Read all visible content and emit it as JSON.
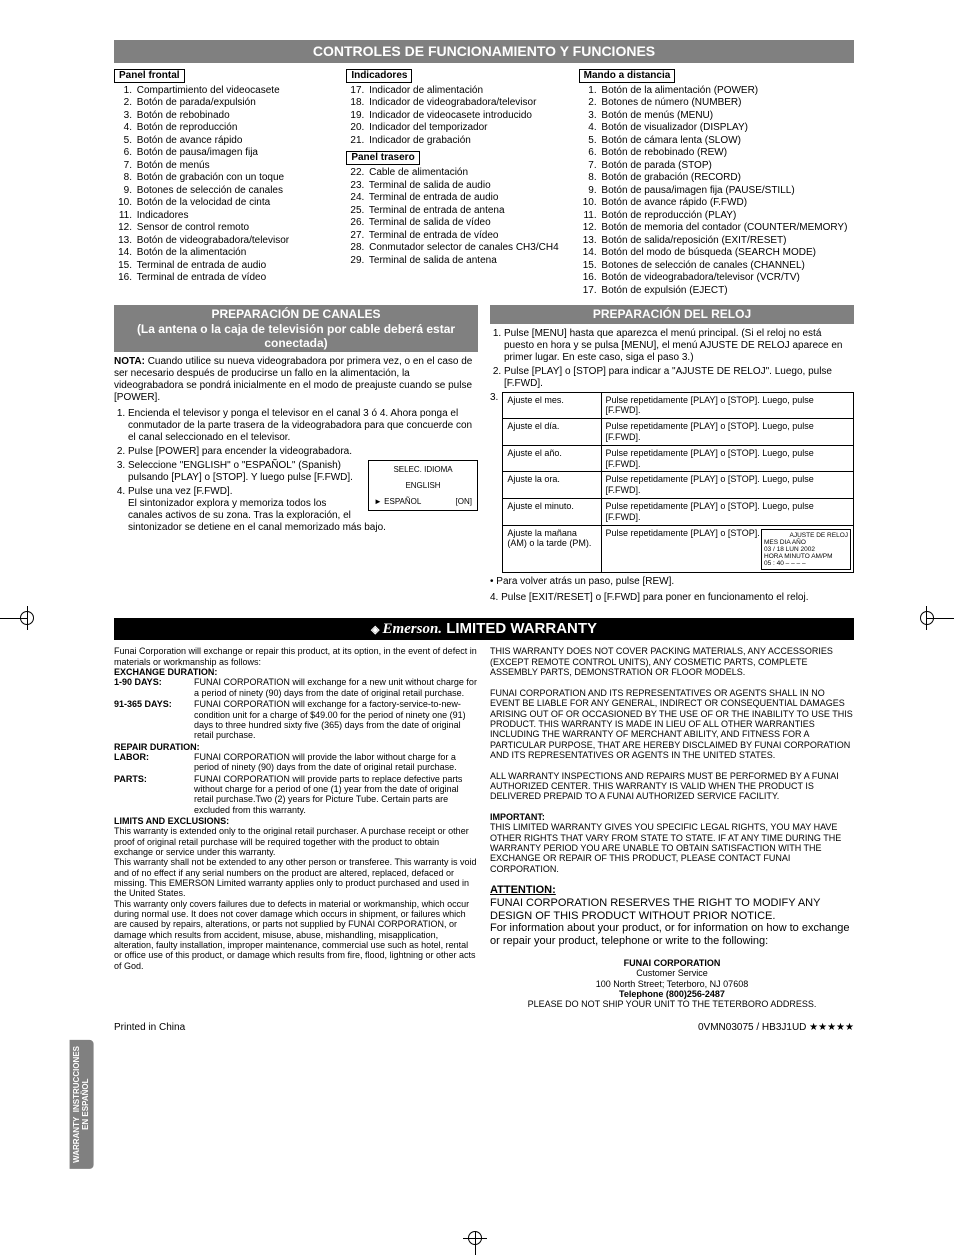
{
  "colors": {
    "banner_bg": "#808080",
    "banner_fg": "#ffffff",
    "black": "#000000"
  },
  "header_banner": "CONTROLES DE FUNCIONAMIENTO Y FUNCIONES",
  "sections": {
    "panel_frontal": {
      "title": "Panel frontal",
      "items": [
        "Compartimiento del videocasete",
        "Botón de parada/expulsión",
        "Botón de rebobinado",
        "Botón de reproducción",
        "Botón de avance rápido",
        "Botón de pausa/imagen fija",
        "Botón de menús",
        "Botón de grabación con un toque",
        "Botones de selección de canales",
        "Botón de la velocidad de cinta",
        "Indicadores",
        "Sensor de control remoto",
        "Botón de videograbadora/televisor",
        "Botón de la alimentación",
        "Terminal de entrada de audio",
        "Terminal de entrada de vídeo"
      ]
    },
    "indicadores": {
      "title": "Indicadores",
      "start": 17,
      "items": [
        "Indicador de alimentación",
        "Indicador de videograbadora/televisor",
        "Indicador de videocasete introducido",
        "Indicador del temporizador",
        "Indicador de grabación"
      ]
    },
    "panel_trasero": {
      "title": "Panel trasero",
      "start": 22,
      "items": [
        "Cable de alimentación",
        "Terminal de salida de audio",
        "Terminal de entrada de audio",
        "Terminal de entrada de antena",
        "Terminal de salida de vídeo",
        "Terminal de entrada de vídeo",
        "Conmutador selector de canales CH3/CH4",
        "Terminal de salida de antena"
      ]
    },
    "mando": {
      "title": "Mando a distancia",
      "items": [
        "Botón de la alimentación (POWER)",
        "Botones de número (NUMBER)",
        "Botón de menús (MENU)",
        "Botón de visualizador (DISPLAY)",
        "Botón de cámara lenta (SLOW)",
        "Botón de rebobinado (REW)",
        "Botón de parada (STOP)",
        "Botón de grabación (RECORD)",
        "Botón de pausa/imagen fija (PAUSE/STILL)",
        "Botón de avance rápido (F.FWD)",
        "Botón de reproducción (PLAY)",
        "Botón de memoria del contador (COUNTER/MEMORY)",
        "Botón de salida/reposición (EXIT/RESET)",
        "Botón del modo de búsqueda (SEARCH MODE)",
        "Botones de selección de canales (CHANNEL)",
        "Botón de videograbadora/televisor (VCR/TV)",
        "Botón de expulsión (EJECT)"
      ]
    }
  },
  "prep_canales": {
    "banner_l1": "PREPARACIÓN DE CANALES",
    "banner_l2": "(La antena o la caja de televisión por cable deberá estar conectada)",
    "nota_label": "NOTA:",
    "nota": " Cuando utilice su nueva videograbadora por primera vez, o en el caso de ser necesario después de producirse un fallo en la alimentación, la videograbadora se pondrá inicialmente en el modo de preajuste cuando se pulse [POWER].",
    "steps": [
      "Encienda el televisor y ponga el televisor en el canal 3 ó 4. Ahora ponga el conmutador de la parte trasera de la videograbadora para que concuerde con el canal seleccionado en el televisor.",
      "Pulse [POWER] para encender la videograbadora.",
      "Seleccione \"ENGLISH\" o \"ESPAÑOL\" (Spanish) pulsando [PLAY] o [STOP]. Y luego pulse [F.FWD].",
      "Pulse una vez [F.FWD].\nEl sintonizador explora y memoriza todos los canales activos de su zona. Tras la exploración, el sintonizador se detiene en el canal memorizado más bajo."
    ],
    "idioma_box": {
      "title": "SELEC. IDIOMA",
      "opt1": "ENGLISH",
      "opt2": "► ESPAÑOL",
      "opt2_r": "[ON]"
    }
  },
  "prep_reloj": {
    "banner": "PREPARACIÓN DEL RELOJ",
    "steps": [
      "Pulse [MENU] hasta que aparezca el menú principal. (Si el reloj no está puesto en hora y se pulsa [MENU], el menú AJUSTE DE RELOJ aparece en primer lugar. En este caso, siga el paso 3.)",
      "Pulse [PLAY] o [STOP] para indicar a \"AJUSTE DE RELOJ\". Luego, pulse [F.FWD]."
    ],
    "table": [
      [
        "Ajuste el mes.",
        "Pulse repetidamente [PLAY] o [STOP]. Luego, pulse [F.FWD]."
      ],
      [
        "Ajuste el día.",
        "Pulse repetidamente [PLAY] o [STOP]. Luego, pulse [F.FWD]."
      ],
      [
        "Ajuste el año.",
        "Pulse repetidamente [PLAY] o [STOP]. Luego, pulse [F.FWD]."
      ],
      [
        "Ajuste la ora.",
        "Pulse repetidamente [PLAY] o [STOP]. Luego, pulse [F.FWD]."
      ],
      [
        "Ajuste el minuto.",
        "Pulse repetidamente [PLAY] o [STOP]. Luego, pulse [F.FWD]."
      ],
      [
        "Ajuste la mañana (AM) o la tarde (PM).",
        "Pulse repetidamente [PLAY] o [STOP]."
      ]
    ],
    "reloj_diag": {
      "t": "AJUSTE DE RELOJ",
      "l1": "MES   DIA   AÑO",
      "l2": "03  /  18   LUN 2002",
      "l3": "HORA MINUTO AM/PM",
      "l4": "05  :  40       – – – –"
    },
    "back": "• Para volver atrás un paso, pulse [REW].",
    "step4": "4. Pulse [EXIT/RESET] o [F.FWD] para poner en funcionamento el reloj."
  },
  "warranty": {
    "banner_brand": "Emerson.",
    "banner_text": " LIMITED WARRANTY",
    "intro": "Funai Corporation will exchange or repair this product, at its option, in the event of defect in materials or workmanship as follows:",
    "exch_h": "EXCHANGE DURATION:",
    "exch": [
      {
        "k": "1-90 DAYS:",
        "v": "FUNAI CORPORATION will exchange for a new unit without charge for a period of ninety (90) days from the date of original retail purchase."
      },
      {
        "k": "91-365 DAYS:",
        "v": "FUNAI CORPORATION will exchange for a factory-service-to-new-condition unit for a charge of $49.00 for the period of ninety one (91) days to three hundred sixty five (365) days from the date of original retail purchase."
      }
    ],
    "rep_h": "REPAIR DURATION:",
    "rep": [
      {
        "k": "LABOR:",
        "v": "FUNAI CORPORATION will provide the labor without charge for a period of ninety (90) days from the date of original retail purchase."
      },
      {
        "k": "PARTS:",
        "v": "FUNAI CORPORATION will provide parts to replace defective parts without charge for a period of one (1) year from the date of original retail purchase.Two (2) years for Picture Tube. Certain parts are excluded from this warranty."
      }
    ],
    "lim_h": "LIMITS AND EXCLUSIONS:",
    "lim": [
      "This warranty is extended only to the original retail purchaser. A purchase receipt or other proof of original retail purchase will be required together with the product to obtain exchange or service under this warranty.",
      "This warranty shall not be extended to any other person or transferee. This warranty is void and of no effect if any serial numbers on the product are altered, replaced, defaced or missing. This EMERSON Limited warranty applies only to product purchased and used in the United States.",
      "This warranty only covers failures due to defects in material or workmanship, which occur during normal use. It does not cover damage which occurs in shipment, or failures which are caused by repairs, alterations, or parts not supplied by FUNAI CORPORATION, or damage which results from accident, misuse, abuse, mishandling, misapplication, alteration, faulty installation, improper maintenance, commercial use such as hotel, rental or office use of this product, or damage which results from fire, flood, lightning or other acts of God."
    ],
    "r1": "THIS WARRANTY DOES NOT COVER PACKING MATERIALS, ANY ACCESSORIES (EXCEPT REMOTE CONTROL UNITS), ANY COSMETIC PARTS, COMPLETE ASSEMBLY PARTS, DEMONSTRATION OR FLOOR MODELS.",
    "r2": "FUNAI CORPORATION AND ITS REPRESENTATIVES OR AGENTS SHALL IN NO EVENT BE LIABLE FOR ANY GENERAL, INDIRECT OR CONSEQUENTIAL DAMAGES ARISING OUT OF OR OCCASIONED BY THE USE OF OR THE INABILITY TO USE THIS PRODUCT. THIS WARRANTY IS MADE IN LIEU OF ALL OTHER WARRANTIES INCLUDING THE WARRANTY OF MERCHANT ABILITY, AND FITNESS FOR A PARTICULAR PURPOSE, THAT ARE HEREBY DISCLAIMED BY FUNAI CORPORATION AND ITS REPRESENTATIVES OR AGENTS IN THE UNITED STATES.",
    "r3": "ALL WARRANTY INSPECTIONS AND REPAIRS MUST BE PERFORMED BY A FUNAI AUTHORIZED CENTER. THIS WARRANTY IS VALID WHEN THE PRODUCT IS DELIVERED PREPAID TO A FUNAI AUTHORIZED SERVICE FACILITY.",
    "imp_h": "IMPORTANT:",
    "imp": "THIS LIMITED WARRANTY GIVES YOU SPECIFIC LEGAL RIGHTS, YOU MAY HAVE OTHER RIGHTS THAT VARY FROM STATE TO STATE. IF AT ANY TIME DURING THE WARRANTY PERIOD YOU ARE UNABLE TO OBTAIN SATISFACTION WITH THE EXCHANGE OR REPAIR OF THIS PRODUCT, PLEASE CONTACT FUNAI CORPORATION.",
    "attn_h": "ATTENTION:",
    "attn": "FUNAI CORPORATION RESERVES THE RIGHT TO MODIFY ANY DESIGN OF THIS PRODUCT WITHOUT PRIOR NOTICE.",
    "info": "For information about your product, or for information on how to exchange or repair your product, telephone or write to the following:",
    "corp": "FUNAI CORPORATION",
    "cs": "Customer Service",
    "addr": "100 North Street; Teterboro, NJ 07608",
    "tel_l": "Telephone (800)256-2487",
    "ship": "PLEASE DO NOT SHIP YOUR UNIT TO THE TETERBORO ADDRESS."
  },
  "sidetab_l1": "WARRANTY",
  "sidetab_l2": "INSTRUCCIONES",
  "sidetab_l3": "EN ESPAÑOL",
  "footer_left": "Printed in China",
  "footer_right": "0VMN03075 / HB3J1UD ★★★★★"
}
